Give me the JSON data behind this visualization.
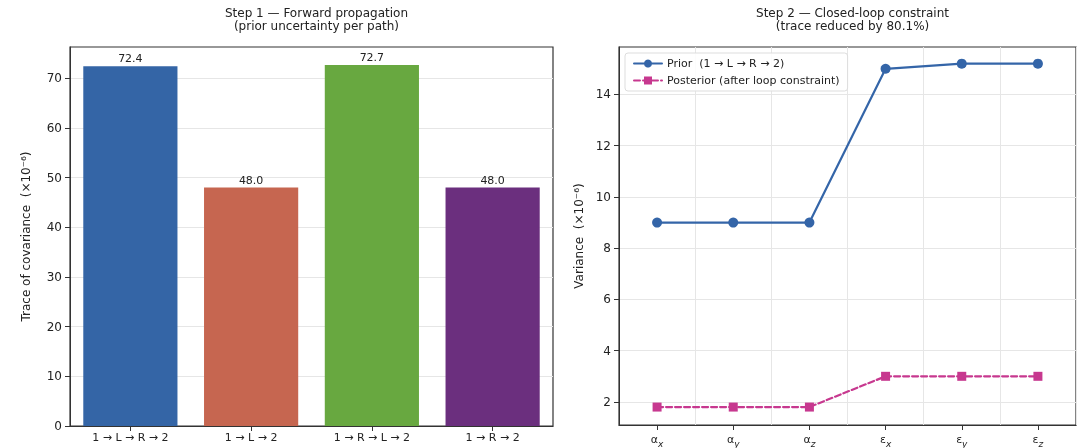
{
  "chart_data": [
    {
      "type": "bar",
      "title": "Step 1 — Forward propagation",
      "subtitle": "(prior uncertainty per path)",
      "ylabel": "Trace of covariance  (×10⁻⁶)",
      "categories": [
        "1 → L → R → 2",
        "1 → L → 2",
        "1 → R → L → 2",
        "1 → R → 2"
      ],
      "values": [
        72.4,
        48.0,
        72.7,
        48.0
      ],
      "colors": [
        "#3465a6",
        "#c66650",
        "#68a840",
        "#6b2f7e"
      ],
      "value_labels": [
        "72.4",
        "48.0",
        "72.7",
        "48.0"
      ],
      "ylim": [
        0,
        76.3
      ],
      "yticks": [
        0,
        10,
        20,
        30,
        40,
        50,
        60,
        70
      ],
      "grid": "y",
      "legend": false
    },
    {
      "type": "line",
      "title": "Step 2 — Closed-loop constraint",
      "subtitle": "(trace reduced by 80.1%)",
      "ylabel": "Variance  (×10⁻⁶)",
      "categories": [
        "α$_{x}$",
        "α$_{y}$",
        "α$_{z}$",
        "ε$_{x}$",
        "ε$_{y}$",
        "ε$_{z}$"
      ],
      "series": [
        {
          "name": "Prior  (1 → L → R → 2)",
          "color": "#3465a8",
          "marker": "circle",
          "line_style": "solid",
          "values": [
            9,
            9,
            9,
            15,
            15.2,
            15.2
          ]
        },
        {
          "name": "Posterior (after loop constraint)",
          "color": "#c7388f",
          "marker": "square",
          "line_style": "dashed",
          "values": [
            1.8,
            1.8,
            1.8,
            3,
            3,
            3
          ]
        }
      ],
      "ylim": [
        1.1,
        15.85
      ],
      "yticks": [
        2,
        4,
        6,
        8,
        10,
        12,
        14
      ],
      "grid": true,
      "legend": "top left"
    }
  ]
}
